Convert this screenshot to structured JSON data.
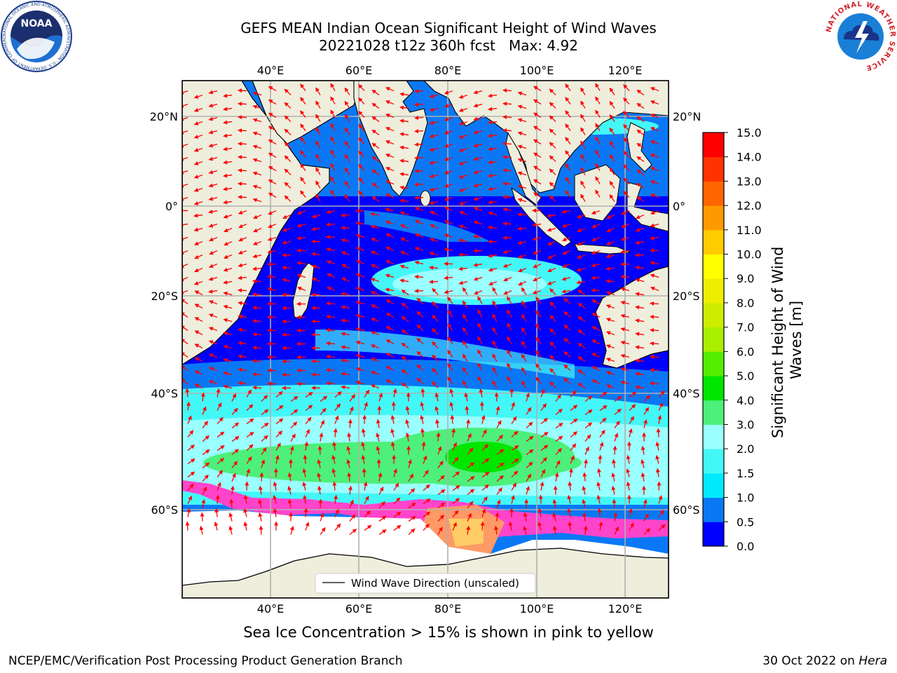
{
  "title": {
    "line1": "GEFS MEAN Indian Ocean Significant Height of Wind Waves",
    "line2": "20221028 t12z 360h fcst   Max: 4.92"
  },
  "logos": {
    "noaa_text": "NOAA",
    "noaa_ring": "NATIONAL OCEANIC AND ATMOSPHERIC ADMINISTRATION · U.S. DEPARTMENT OF COMMERCE",
    "nws_ring": "NATIONAL WEATHER SERVICE"
  },
  "map": {
    "lon_labels": [
      "40°E",
      "60°E",
      "80°E",
      "100°E",
      "120°E"
    ],
    "lat_labels": [
      "20°N",
      "0°",
      "20°S",
      "40°S",
      "60°S"
    ],
    "legend_label": "Wind Wave Direction (unscaled)",
    "arrow_color": "#ff0000",
    "land_color": "#efeedd",
    "ice_colors": [
      "#ff44cc",
      "#ff9966",
      "#ffcc66"
    ]
  },
  "colorbar": {
    "label": "Significant Height of Wind Waves [m]",
    "ticks": [
      "0.0",
      "0.5",
      "1.0",
      "1.5",
      "2.0",
      "3.0",
      "4.0",
      "5.0",
      "6.0",
      "7.0",
      "8.0",
      "9.0",
      "10.0",
      "11.0",
      "12.0",
      "13.0",
      "14.0",
      "15.0"
    ],
    "colors": [
      "#0000ff",
      "#0a78f5",
      "#00eaff",
      "#44f7f7",
      "#99ffff",
      "#4cf07a",
      "#00e600",
      "#55ee00",
      "#aaee00",
      "#cced00",
      "#eeee00",
      "#ffff00",
      "#ffcc00",
      "#ff9900",
      "#ff6600",
      "#ff3300",
      "#ff0000"
    ]
  },
  "footer": {
    "sea_ice_note": "Sea Ice Concentration > 15% is shown in pink to yellow",
    "credit": "NCEP/EMC/Verification Post Processing Product Generation Branch",
    "date": "30 Oct 2022 on",
    "host": "Hera"
  }
}
